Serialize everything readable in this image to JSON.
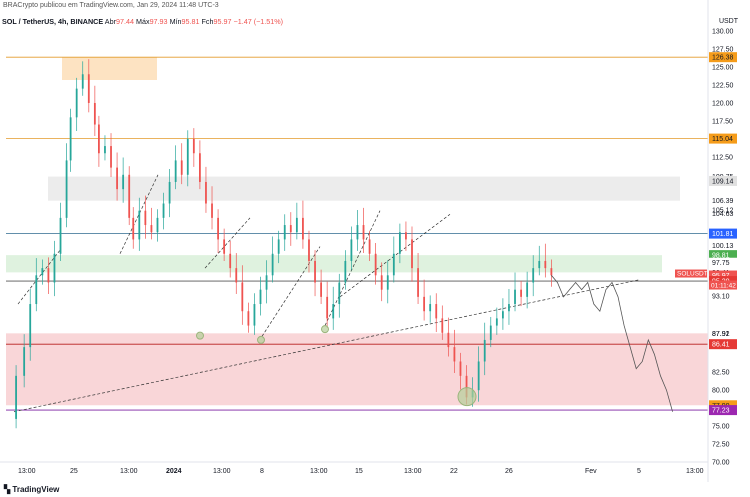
{
  "header": {
    "text": "BRACrypto publicou em TradingView.com, Jan 29, 2024 11:48 UTC-3"
  },
  "legend": {
    "symbol": "SOL / TetherUS, 4h, BINANCE",
    "open_label": "Abr",
    "open": "97.44",
    "high_label": "Máx",
    "high": "97.93",
    "low_label": "Mín",
    "low": "95.81",
    "close_label": "Fch",
    "close": "95.97",
    "change": "−1.47 (−1.51%)"
  },
  "currency": "USDT",
  "footer": {
    "logo_text": "TradingView"
  },
  "colors": {
    "up": "#26a69a",
    "down": "#ef5350",
    "orange_line": "#e39a2a",
    "support_zone": "#f8d7d9",
    "green_zone": "#dff2df",
    "grey_zone": "#ececec"
  },
  "chart_data": {
    "type": "candlestick",
    "ylim": [
      70,
      131
    ],
    "y_ticks": [
      130.0,
      127.5,
      125.0,
      122.5,
      120.0,
      117.5,
      112.5,
      105.12,
      104.63,
      100.37,
      95.49,
      95.08,
      93.1,
      87.92,
      87.91,
      86.18,
      82.5,
      80.0,
      77.5,
      75.0,
      72.5,
      70.0
    ],
    "x_labels": [
      "13:00",
      "25",
      "13:00",
      "2024",
      "13:00",
      "8",
      "13:00",
      "15",
      "13:00",
      "22",
      "26",
      "Fev",
      "5",
      "13:00"
    ],
    "price_tags": [
      {
        "label": "126.38",
        "value": 126.38,
        "bg": "#f59c1a",
        "fg": "#131722"
      },
      {
        "label": "115.04",
        "value": 115.04,
        "bg": "#f59c1a",
        "fg": "#131722"
      },
      {
        "label": "109.75",
        "value": 109.75,
        "bg": "#ffffff",
        "fg": "#131722"
      },
      {
        "label": "109.14",
        "value": 109.14,
        "bg": "#e0e0e0",
        "fg": "#131722"
      },
      {
        "label": "106.39",
        "value": 106.39,
        "bg": "#ffffff",
        "fg": "#131722"
      },
      {
        "label": "101.81",
        "value": 101.81,
        "bg": "#2962ff",
        "fg": "#ffffff"
      },
      {
        "label": "100.13",
        "value": 100.13,
        "bg": "#ffffff",
        "fg": "#131722"
      },
      {
        "label": "98.81",
        "value": 98.81,
        "bg": "#4caf50",
        "fg": "#ffffff"
      },
      {
        "label": "97.75",
        "value": 97.75,
        "bg": "#ffffff",
        "fg": "#131722"
      },
      {
        "label": "96.41",
        "value": 96.41,
        "bg": "#ffffff",
        "fg": "#131722"
      },
      {
        "label": "95.97",
        "value": 95.97,
        "bg": "#ef5350",
        "fg": "#ffffff"
      },
      {
        "label": "95.20",
        "value": 95.2,
        "bg": "#e53935",
        "fg": "#ffffff"
      },
      {
        "label": "86.41",
        "value": 86.41,
        "bg": "#e53935",
        "fg": "#ffffff"
      },
      {
        "label": "77.90",
        "value": 77.9,
        "bg": "#f59c1a",
        "fg": "#131722"
      },
      {
        "label": "77.23",
        "value": 77.23,
        "bg": "#9c27b0",
        "fg": "#ffffff"
      }
    ],
    "countdown": "01:11:42",
    "symbol_tag": "SOLUSDT",
    "horizontal_lines": [
      {
        "value": 126.38,
        "color": "#e39a2a"
      },
      {
        "value": 115.04,
        "color": "#e39a2a"
      },
      {
        "value": 101.81,
        "color": "#2e6a8f"
      },
      {
        "value": 95.2,
        "color": "#555555"
      },
      {
        "value": 86.41,
        "color": "#b71c1c"
      },
      {
        "value": 77.23,
        "color": "#7b1fa2"
      }
    ],
    "zones": [
      {
        "name": "orange-block",
        "y_top": 126.38,
        "y_bottom": 123.2,
        "color": "#fde3c2"
      },
      {
        "name": "grey-resistance",
        "y_top": 109.75,
        "y_bottom": 106.39,
        "color": "#ececec"
      },
      {
        "name": "green-zone",
        "y_top": 98.81,
        "y_bottom": 96.41,
        "color": "#dff2df"
      },
      {
        "name": "red-support",
        "y_top": 87.92,
        "y_bottom": 77.9,
        "color": "#f9d6d8"
      }
    ],
    "path_points": [
      [
        0,
        76
      ],
      [
        4,
        82
      ],
      [
        8,
        86
      ],
      [
        11,
        92
      ],
      [
        14,
        96
      ],
      [
        17,
        97
      ],
      [
        20,
        95
      ],
      [
        23,
        99
      ],
      [
        26,
        104
      ],
      [
        29,
        112
      ],
      [
        31,
        118
      ],
      [
        34,
        122
      ],
      [
        37,
        124
      ],
      [
        40,
        120
      ],
      [
        43,
        117
      ],
      [
        45,
        113
      ],
      [
        48,
        114
      ],
      [
        51,
        111
      ],
      [
        54,
        108
      ],
      [
        57,
        110
      ],
      [
        60,
        104
      ],
      [
        62,
        101
      ],
      [
        65,
        105
      ],
      [
        68,
        103
      ],
      [
        71,
        102
      ],
      [
        74,
        104
      ],
      [
        77,
        106
      ],
      [
        80,
        109
      ],
      [
        83,
        112
      ],
      [
        86,
        110
      ],
      [
        89,
        115
      ],
      [
        92,
        113
      ],
      [
        95,
        109
      ],
      [
        98,
        106
      ],
      [
        101,
        104
      ],
      [
        104,
        101
      ],
      [
        107,
        99
      ],
      [
        110,
        97
      ],
      [
        113,
        95
      ],
      [
        116,
        91
      ],
      [
        119,
        89
      ],
      [
        122,
        92
      ],
      [
        125,
        94
      ],
      [
        128,
        96
      ],
      [
        131,
        99
      ],
      [
        134,
        101
      ],
      [
        137,
        103
      ],
      [
        140,
        102
      ],
      [
        143,
        104
      ],
      [
        146,
        101
      ],
      [
        149,
        98
      ],
      [
        152,
        95
      ],
      [
        155,
        93
      ],
      [
        158,
        90
      ],
      [
        161,
        92
      ],
      [
        164,
        95
      ],
      [
        167,
        98
      ],
      [
        170,
        101
      ],
      [
        173,
        103
      ],
      [
        176,
        101
      ],
      [
        179,
        99
      ],
      [
        182,
        96
      ],
      [
        185,
        94
      ],
      [
        188,
        96
      ],
      [
        191,
        99
      ],
      [
        194,
        102
      ],
      [
        197,
        101
      ],
      [
        200,
        97
      ],
      [
        203,
        93
      ],
      [
        206,
        91
      ],
      [
        209,
        92
      ],
      [
        212,
        90
      ],
      [
        215,
        88
      ],
      [
        218,
        86
      ],
      [
        221,
        84
      ],
      [
        224,
        82
      ],
      [
        227,
        79
      ],
      [
        230,
        80
      ],
      [
        233,
        84
      ],
      [
        236,
        87
      ],
      [
        239,
        89
      ],
      [
        242,
        90
      ],
      [
        245,
        91
      ],
      [
        248,
        92
      ],
      [
        251,
        94
      ],
      [
        254,
        93
      ],
      [
        257,
        95
      ],
      [
        260,
        97
      ],
      [
        263,
        98
      ],
      [
        266,
        97
      ],
      [
        269,
        96
      ]
    ],
    "forecast_points": [
      [
        269,
        96
      ],
      [
        272,
        95
      ],
      [
        275,
        93
      ],
      [
        278,
        94
      ],
      [
        281,
        95
      ],
      [
        284,
        94
      ],
      [
        287,
        95
      ],
      [
        290,
        92
      ],
      [
        293,
        91
      ],
      [
        296,
        94
      ],
      [
        299,
        95
      ],
      [
        302,
        93
      ],
      [
        305,
        89
      ],
      [
        308,
        86
      ],
      [
        311,
        83
      ],
      [
        314,
        84
      ],
      [
        317,
        87
      ],
      [
        320,
        85
      ],
      [
        323,
        82
      ],
      [
        326,
        80
      ],
      [
        329,
        77
      ]
    ]
  }
}
